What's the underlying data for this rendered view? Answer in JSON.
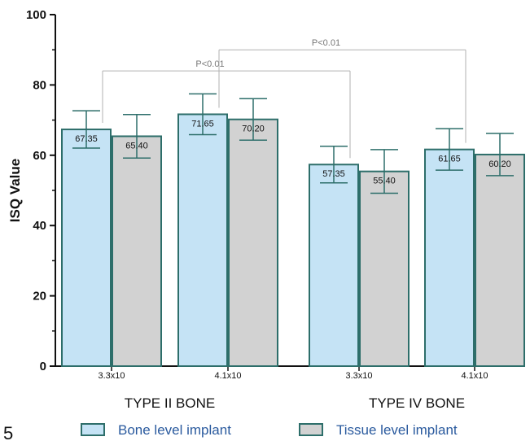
{
  "chart_data": {
    "type": "bar",
    "ylabel": "ISQ Value",
    "xlabel": "",
    "ylim": [
      0,
      100
    ],
    "yticks": [
      0,
      20,
      40,
      60,
      80,
      100
    ],
    "grid": false,
    "legend_position": "bottom",
    "categories": [
      "3.3x10",
      "4.1x10",
      "3.3x10",
      "4.1x10"
    ],
    "groups": [
      {
        "label": "TYPE II BONE",
        "categories": [
          0,
          1
        ]
      },
      {
        "label": "TYPE IV BONE",
        "categories": [
          2,
          3
        ]
      }
    ],
    "series": [
      {
        "name": "Bone level implant",
        "color": "#c5e3f5",
        "values": [
          67.35,
          71.65,
          57.35,
          61.65
        ],
        "errors": [
          5.3,
          5.8,
          5.2,
          5.9
        ]
      },
      {
        "name": "Tissue level implant",
        "color": "#d2d2d2",
        "values": [
          65.4,
          70.2,
          55.4,
          60.2
        ],
        "errors": [
          6.2,
          5.9,
          6.2,
          6.0
        ]
      }
    ],
    "value_labels": [
      "67.35",
      "65.40",
      "71.65",
      "70.20",
      "57.35",
      "55.40",
      "61.65",
      "60.20"
    ],
    "annotations": [
      {
        "text": "P<0.01",
        "from_bar": 0,
        "to_bar": 4,
        "level": 84
      },
      {
        "text": "P<0.01",
        "from_bar": 2,
        "to_bar": 6,
        "level": 90
      }
    ],
    "panel_label": "5",
    "colors": {
      "bar_edge": "#2d6e6a",
      "error_bar": "#2d6e6a",
      "bracket": "#b0b0b0",
      "legend_text": "#2a5a9e"
    }
  }
}
